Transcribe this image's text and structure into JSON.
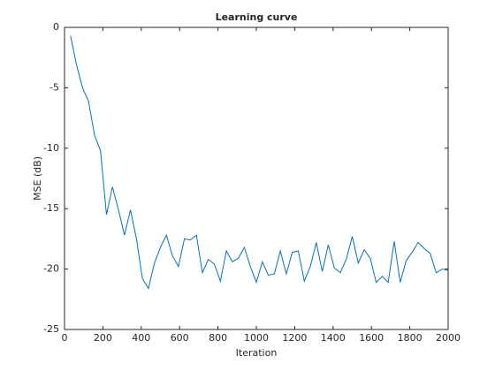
{
  "chart_data": {
    "type": "line",
    "title": "Learning curve",
    "x_label": "Iteration",
    "y_label": "MSE (dB)",
    "x": [
      31.25,
      62.5,
      93.75,
      125,
      156.25,
      187.5,
      218.75,
      250,
      281.25,
      312.5,
      343.75,
      375,
      406.25,
      437.5,
      468.75,
      500,
      531.25,
      562.5,
      593.75,
      625,
      656.25,
      687.5,
      718.75,
      750,
      781.25,
      812.5,
      843.75,
      875,
      906.25,
      937.5,
      968.75,
      1000,
      1031.25,
      1062.5,
      1093.75,
      1125,
      1156.25,
      1187.5,
      1218.75,
      1250,
      1281.25,
      1312.5,
      1343.75,
      1375,
      1406.25,
      1437.5,
      1468.75,
      1500,
      1531.25,
      1562.5,
      1593.75,
      1625,
      1656.25,
      1687.5,
      1718.75,
      1750,
      1781.25,
      1812.5,
      1843.75,
      1875,
      1906.25,
      1937.5,
      1968.75,
      2000
    ],
    "values": [
      -0.7,
      -3.1,
      -5.0,
      -6.1,
      -8.9,
      -10.2,
      -15.5,
      -13.2,
      -15.1,
      -17.2,
      -15.1,
      -17.5,
      -20.8,
      -21.6,
      -19.5,
      -18.2,
      -17.2,
      -18.9,
      -19.8,
      -17.5,
      -17.6,
      -17.2,
      -20.3,
      -19.2,
      -19.6,
      -21.0,
      -18.5,
      -19.4,
      -19.1,
      -18.2,
      -19.8,
      -21.1,
      -19.4,
      -20.5,
      -20.4,
      -18.5,
      -20.4,
      -18.6,
      -18.5,
      -21.0,
      -19.8,
      -17.8,
      -20.2,
      -18.0,
      -19.9,
      -20.3,
      -19.2,
      -17.3,
      -19.5,
      -18.4,
      -19.1,
      -21.1,
      -20.6,
      -21.1,
      -17.7,
      -21.1,
      -19.3,
      -18.6,
      -17.8,
      -18.3,
      -18.7,
      -20.3,
      -20.0,
      -20.1
    ],
    "color": "#0072bd",
    "xlim": [
      0,
      2000
    ],
    "xticks": [
      0,
      200,
      400,
      600,
      800,
      1000,
      1200,
      1400,
      1600,
      1800,
      2000
    ],
    "ylim": [
      -25,
      0
    ],
    "yticks": [
      -25,
      -20,
      -15,
      -10,
      -5,
      0
    ]
  }
}
